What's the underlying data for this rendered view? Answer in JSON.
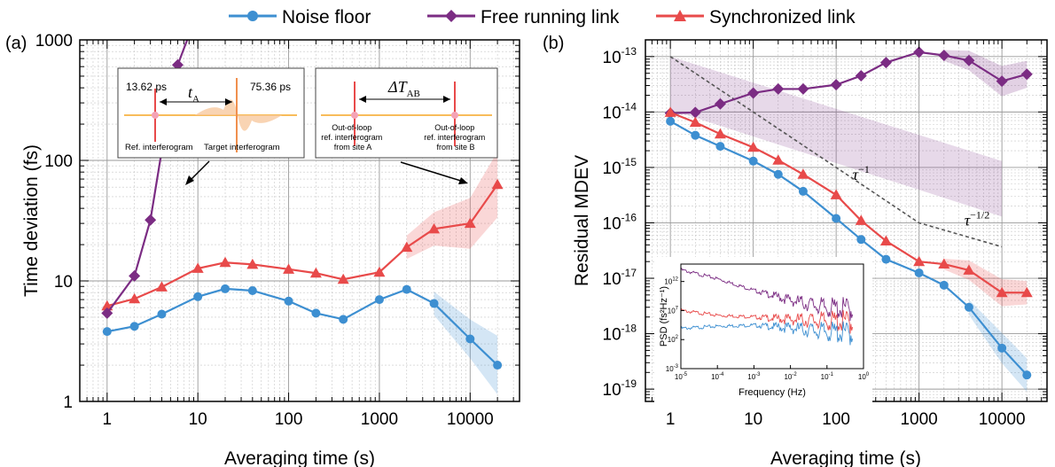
{
  "legend": [
    {
      "label": "Noise floor",
      "color": "#3d8fd1",
      "marker": "circle"
    },
    {
      "label": "Free running link",
      "color": "#7b2c83",
      "marker": "diamond"
    },
    {
      "label": "Synchronized link",
      "color": "#e84a4a",
      "marker": "triangle"
    }
  ],
  "chart_data": [
    {
      "panel_label": "(a)",
      "type": "line",
      "xscale": "log",
      "yscale": "log",
      "xlabel": "Averaging time (s)",
      "ylabel": "Time deviation (fs)",
      "xlim": [
        0.5,
        35000
      ],
      "ylim": [
        1,
        1000
      ],
      "x_ticks": [
        1,
        10,
        100,
        1000,
        10000
      ],
      "x_tick_labels": [
        "1",
        "10",
        "100",
        "1000",
        "10000"
      ],
      "y_ticks": [
        1,
        10,
        100,
        1000
      ],
      "y_tick_labels": [
        "1",
        "10",
        "100",
        "1000"
      ],
      "grid": true,
      "series": [
        {
          "name": "Noise floor",
          "color": "#3d8fd1",
          "marker": "circle",
          "x": [
            1,
            2,
            4,
            10,
            20,
            40,
            100,
            200,
            400,
            1000,
            2000,
            4000,
            10000,
            20000
          ],
          "y": [
            3.8,
            4.2,
            5.3,
            7.4,
            8.6,
            8.3,
            6.8,
            5.4,
            4.8,
            7.0,
            8.5,
            6.5,
            3.3,
            2.0
          ],
          "band_from_x": 4000,
          "band_rel": [
            0.1,
            0.18,
            0.3
          ]
        },
        {
          "name": "Synchronized link",
          "color": "#e84a4a",
          "marker": "triangle",
          "x": [
            1,
            2,
            4,
            10,
            20,
            40,
            100,
            200,
            400,
            1000,
            2000,
            4000,
            10000,
            20000
          ],
          "y": [
            6.2,
            7.1,
            8.9,
            12.7,
            14.2,
            13.7,
            12.5,
            11.6,
            10.3,
            11.8,
            19.0,
            27.0,
            30.0,
            63.0
          ],
          "band_from_x": 2000,
          "band_rel": [
            0.1,
            0.15,
            0.25,
            0.35
          ]
        },
        {
          "name": "Free running link",
          "color": "#7b2c83",
          "marker": "diamond",
          "x": [
            1,
            2,
            3,
            4,
            6,
            8
          ],
          "y": [
            5.4,
            11.0,
            32.0,
            120.0,
            620.0,
            1100.0
          ]
        }
      ],
      "inset_a": {
        "left_value": "13.62 ps",
        "right_value": "75.36 ps",
        "symbol": "t",
        "symbol_sub": "A",
        "left_caption": "Ref. interferogram",
        "right_caption": "Target interferogram"
      },
      "inset_b": {
        "symbol": "ΔT",
        "symbol_sub": "AB",
        "left_caption": [
          "Out-of-loop",
          "ref. interferogram",
          "from site A"
        ],
        "right_caption": [
          "Out-of-loop",
          "ref. interferogram",
          "from site B"
        ]
      }
    },
    {
      "panel_label": "(b)",
      "type": "line",
      "xscale": "log",
      "yscale": "log",
      "xlabel": "Averaging time (s)",
      "ylabel": "Residual MDEV",
      "xlim": [
        0.5,
        35000
      ],
      "ylim": [
        6e-20,
        2e-13
      ],
      "x_ticks": [
        1,
        10,
        100,
        1000,
        10000
      ],
      "x_tick_labels": [
        "1",
        "10",
        "100",
        "1000",
        "10000"
      ],
      "y_tick_labels": [
        {
          "base": "10",
          "exp": "-13",
          "value": 1e-13
        },
        {
          "base": "10",
          "exp": "-14",
          "value": 1e-14
        },
        {
          "base": "10",
          "exp": "-15",
          "value": 1e-15
        },
        {
          "base": "10",
          "exp": "-16",
          "value": 1e-16
        },
        {
          "base": "10",
          "exp": "-17",
          "value": 1e-17
        },
        {
          "base": "10",
          "exp": "-18",
          "value": 1e-18
        },
        {
          "base": "10",
          "exp": "-19",
          "value": 1e-19
        }
      ],
      "grid": true,
      "series": [
        {
          "name": "Free running link",
          "color": "#7b2c83",
          "marker": "diamond",
          "x": [
            1,
            2,
            4,
            10,
            20,
            40,
            100,
            200,
            400,
            1000,
            2000,
            4000,
            10000,
            20000
          ],
          "y": [
            9.5e-15,
            9.8e-15,
            1.4e-14,
            2.2e-14,
            2.6e-14,
            2.6e-14,
            3.1e-14,
            4.5e-14,
            7.8e-14,
            1.2e-13,
            1.05e-13,
            8.5e-14,
            3.6e-14,
            4.8e-14
          ],
          "band_from_x": 2000,
          "band_rel": [
            0.1,
            0.2,
            0.35,
            0.3
          ]
        },
        {
          "name": "Synchronized link",
          "color": "#e84a4a",
          "marker": "triangle",
          "x": [
            1,
            2,
            4,
            10,
            20,
            40,
            100,
            200,
            400,
            1000,
            2000,
            4000,
            10000,
            20000
          ],
          "y": [
            9.8e-15,
            6.5e-15,
            4e-15,
            2.3e-15,
            1.35e-15,
            7.5e-16,
            3.2e-16,
            1.1e-16,
            4.7e-17,
            2e-17,
            1.8e-17,
            1.4e-17,
            5.5e-18,
            5.5e-18
          ],
          "band_from_x": 2000,
          "band_rel": [
            0.1,
            0.2,
            0.3,
            0.25
          ]
        },
        {
          "name": "Noise floor",
          "color": "#3d8fd1",
          "marker": "circle",
          "x": [
            1,
            2,
            4,
            10,
            20,
            40,
            100,
            200,
            400,
            1000,
            2000,
            4000,
            10000,
            20000
          ],
          "y": [
            6.8e-15,
            3.8e-15,
            2.4e-15,
            1.3e-15,
            7.5e-16,
            3.7e-16,
            1.2e-16,
            5e-17,
            2.2e-17,
            1.25e-17,
            7.5e-18,
            3e-18,
            5.5e-19,
            1.8e-19
          ],
          "band_from_x": 4000,
          "band_rel": [
            0.15,
            0.35,
            0.4
          ]
        }
      ],
      "guide_line": {
        "x": [
          1,
          1000,
          10000
        ],
        "y": [
          1e-13,
          1e-16,
          3.7e-17
        ]
      },
      "shaded_region": {
        "x": [
          1,
          10000
        ],
        "upper": [
          1e-13,
          1.3e-15
        ],
        "lower": [
          1.1e-14,
          1.3e-16
        ]
      },
      "annotations": [
        {
          "text": "τ",
          "sup": "−1",
          "x": 200,
          "y": 6e-16
        },
        {
          "text": "τ",
          "sup": "−1/2",
          "x": 5000,
          "y": 9e-17
        }
      ],
      "inset": {
        "type": "line",
        "xscale": "log",
        "yscale": "log",
        "xlabel": "Frequency (Hz)",
        "ylabel": "PSD (fs²Hz⁻¹)",
        "xlim": [
          1e-05,
          1
        ],
        "ylim": [
          0.001,
          1000000000000000.0
        ],
        "x_tick_labels": [
          {
            "base": "10",
            "exp": "-5",
            "value": 1e-05
          },
          {
            "base": "10",
            "exp": "-4",
            "value": 0.0001
          },
          {
            "base": "10",
            "exp": "-3",
            "value": 0.001
          },
          {
            "base": "10",
            "exp": "-2",
            "value": 0.01
          },
          {
            "base": "10",
            "exp": "-1",
            "value": 0.1
          },
          {
            "base": "10",
            "exp": "0",
            "value": 1
          }
        ],
        "y_tick_labels": [
          {
            "base": "10",
            "exp": "-3",
            "value": 0.001
          },
          {
            "base": "10",
            "exp": "2",
            "value": 100.0
          },
          {
            "base": "10",
            "exp": "7",
            "value": 10000000.0
          },
          {
            "base": "10",
            "exp": "12",
            "value": 1000000000000.0
          }
        ],
        "series": [
          {
            "color": "#7b2c83",
            "x": [
              1e-05,
              0.0001,
              0.001,
              0.01,
              0.1,
              0.5
            ],
            "y": [
              100000000000000.0,
              3000000000000.0,
              30000000000.0,
              600000000.0,
              30000000.0,
              15000000.0
            ]
          },
          {
            "color": "#e84a4a",
            "x": [
              1e-05,
              0.0001,
              0.001,
              0.01,
              0.1,
              0.5
            ],
            "y": [
              10000000.0,
              1500000.0,
              800000.0,
              300000.0,
              150000.0,
              100000.0
            ]
          },
          {
            "color": "#3d8fd1",
            "x": [
              1e-05,
              0.0001,
              0.001,
              0.01,
              0.1,
              0.5
            ],
            "y": [
              8000.0,
              20000.0,
              30000.0,
              10000.0,
              2000.0,
              1000.0
            ]
          }
        ]
      }
    }
  ]
}
